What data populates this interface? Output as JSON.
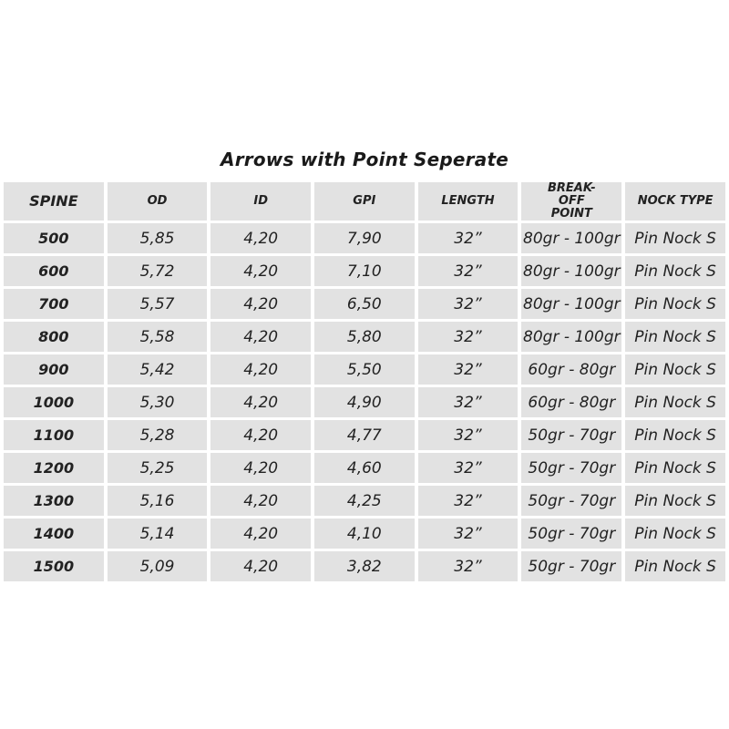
{
  "title": "Arrows with Point Seperate",
  "headers": [
    "SPINE",
    "OD",
    "ID",
    "GPI",
    "LENGTH",
    "BREAK-OFF POINT",
    "NOCK TYPE"
  ],
  "rows": [
    [
      "500",
      "5,85",
      "4,20",
      "7,90",
      "32”",
      "80gr - 100gr",
      "Pin Nock S"
    ],
    [
      "600",
      "5,72",
      "4,20",
      "7,10",
      "32”",
      "80gr - 100gr",
      "Pin Nock S"
    ],
    [
      "700",
      "5,57",
      "4,20",
      "6,50",
      "32”",
      "80gr - 100gr",
      "Pin Nock S"
    ],
    [
      "800",
      "5,58",
      "4,20",
      "5,80",
      "32”",
      "80gr - 100gr",
      "Pin Nock S"
    ],
    [
      "900",
      "5,42",
      "4,20",
      "5,50",
      "32”",
      "60gr - 80gr",
      "Pin Nock S"
    ],
    [
      "1000",
      "5,30",
      "4,20",
      "4,90",
      "32”",
      "60gr - 80gr",
      "Pin Nock S"
    ],
    [
      "1100",
      "5,28",
      "4,20",
      "4,77",
      "32”",
      "50gr - 70gr",
      "Pin Nock S"
    ],
    [
      "1200",
      "5,25",
      "4,20",
      "4,60",
      "32”",
      "50gr - 70gr",
      "Pin Nock S"
    ],
    [
      "1300",
      "5,16",
      "4,20",
      "4,25",
      "32”",
      "50gr - 70gr",
      "Pin Nock S"
    ],
    [
      "1400",
      "5,14",
      "4,20",
      "4,10",
      "32”",
      "50gr - 70gr",
      "Pin Nock S"
    ],
    [
      "1500",
      "5,09",
      "4,20",
      "3,82",
      "32”",
      "50gr - 70gr",
      "Pin Nock S"
    ]
  ],
  "colors": {
    "cell_background": "#e2e2e2",
    "text": "#222222"
  }
}
